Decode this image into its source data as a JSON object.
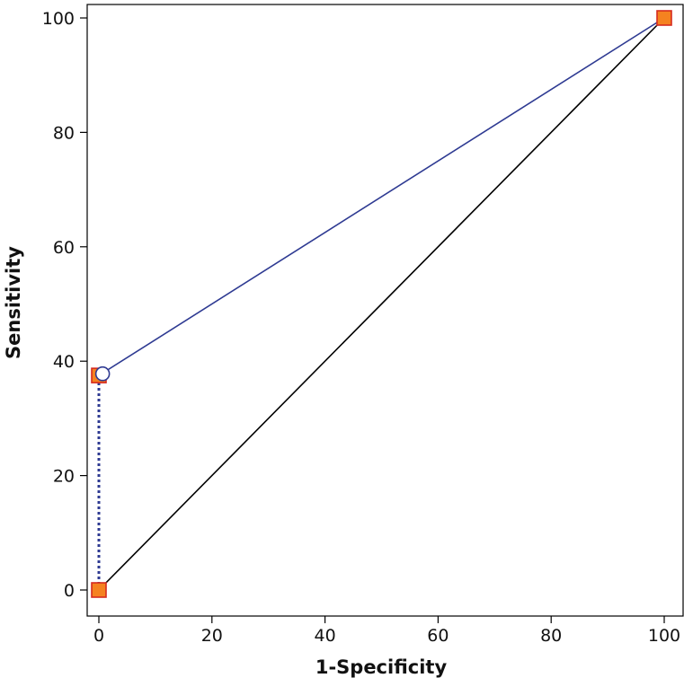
{
  "chart_data": {
    "type": "line",
    "xlabel": "1-Specificity",
    "ylabel": "Sensitivity",
    "xlim": [
      0,
      100
    ],
    "ylim": [
      0,
      100
    ],
    "xticks": [
      0,
      20,
      40,
      60,
      80,
      100
    ],
    "yticks": [
      0,
      20,
      40,
      60,
      80,
      100
    ],
    "grid": false,
    "series": [
      {
        "role": "roc-curve",
        "color": "#2e3a92",
        "points": [
          [
            0,
            37.5
          ],
          [
            100,
            100
          ]
        ],
        "dotted_drop": [
          [
            0,
            0
          ],
          [
            0,
            37.5
          ]
        ]
      },
      {
        "role": "reference-diagonal",
        "color": "#000000",
        "points": [
          [
            0,
            0
          ],
          [
            100,
            100
          ]
        ]
      }
    ],
    "markers": {
      "square_color": "#f58220",
      "square_edge": "#d62b1f",
      "squares": [
        [
          0,
          0
        ],
        [
          0,
          37.5
        ],
        [
          100,
          100
        ]
      ],
      "circle": [
        0.5,
        37.8
      ]
    }
  }
}
